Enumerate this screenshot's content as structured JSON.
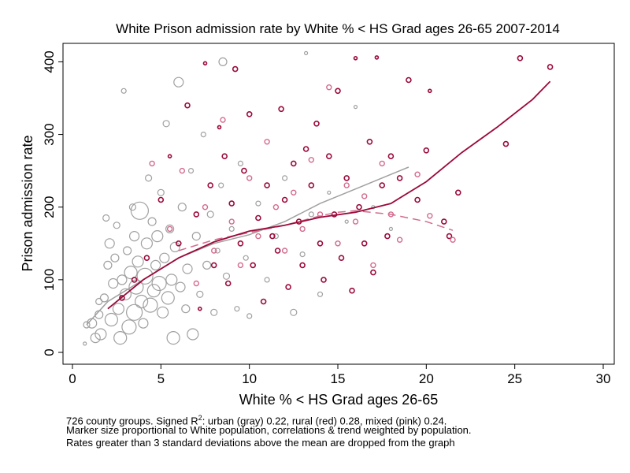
{
  "chart_data": {
    "type": "scatter",
    "title": "White Prison admission rate by White % < HS Grad ages 26-65 2007-2014",
    "xlabel": "White % < HS Grad ages 26-65",
    "ylabel": "Prison admission rate",
    "xlim": [
      0,
      30
    ],
    "ylim": [
      0,
      420
    ],
    "xticks": [
      "0",
      "5",
      "10",
      "15",
      "20",
      "25",
      "30"
    ],
    "yticks": [
      "0",
      "100",
      "200",
      "300",
      "400"
    ],
    "grid": false,
    "legend": "none",
    "colors": {
      "urban": "#a0a0a0",
      "rural": "#9b0a3a",
      "mixed": "#d46b8c"
    },
    "trend_urban": [
      [
        0.8,
        38
      ],
      [
        2,
        70
      ],
      [
        4,
        100
      ],
      [
        6,
        130
      ],
      [
        8,
        150
      ],
      [
        10,
        162
      ],
      [
        12,
        180
      ],
      [
        14,
        205
      ],
      [
        16,
        225
      ],
      [
        18,
        245
      ],
      [
        19,
        255
      ]
    ],
    "trend_rural": [
      [
        2,
        60
      ],
      [
        4,
        100
      ],
      [
        6,
        130
      ],
      [
        8,
        152
      ],
      [
        10,
        167
      ],
      [
        12,
        175
      ],
      [
        14,
        186
      ],
      [
        16,
        193
      ],
      [
        18,
        205
      ],
      [
        20,
        235
      ],
      [
        22,
        275
      ],
      [
        24,
        310
      ],
      [
        26,
        348
      ],
      [
        27,
        373
      ]
    ],
    "trend_mixed": [
      [
        6,
        140
      ],
      [
        8,
        155
      ],
      [
        10,
        165
      ],
      [
        12,
        175
      ],
      [
        14,
        188
      ],
      [
        15,
        193
      ],
      [
        16,
        195
      ],
      [
        18,
        190
      ],
      [
        20,
        180
      ],
      [
        21.5,
        168
      ]
    ],
    "points_urban": [
      [
        0.7,
        12,
        2
      ],
      [
        0.8,
        38,
        4
      ],
      [
        1.1,
        40,
        6
      ],
      [
        1.3,
        20,
        6
      ],
      [
        1.5,
        70,
        4
      ],
      [
        1.5,
        52,
        5
      ],
      [
        1.6,
        25,
        7
      ],
      [
        1.8,
        75,
        5
      ],
      [
        1.9,
        185,
        4
      ],
      [
        2.0,
        120,
        5
      ],
      [
        2.1,
        150,
        6
      ],
      [
        2.2,
        45,
        8
      ],
      [
        2.3,
        95,
        6
      ],
      [
        2.4,
        130,
        5
      ],
      [
        2.5,
        175,
        4
      ],
      [
        2.6,
        60,
        7
      ],
      [
        2.7,
        20,
        8
      ],
      [
        2.8,
        100,
        6
      ],
      [
        2.9,
        360,
        3
      ],
      [
        3.0,
        80,
        7
      ],
      [
        3.1,
        140,
        5
      ],
      [
        3.2,
        35,
        9
      ],
      [
        3.3,
        110,
        8
      ],
      [
        3.4,
        200,
        4
      ],
      [
        3.5,
        55,
        10
      ],
      [
        3.5,
        160,
        6
      ],
      [
        3.6,
        90,
        9
      ],
      [
        3.7,
        125,
        7
      ],
      [
        3.8,
        195,
        11
      ],
      [
        3.9,
        70,
        8
      ],
      [
        4.0,
        40,
        6
      ],
      [
        4.1,
        105,
        10
      ],
      [
        4.2,
        150,
        7
      ],
      [
        4.3,
        240,
        4
      ],
      [
        4.4,
        65,
        9
      ],
      [
        4.5,
        180,
        5
      ],
      [
        4.6,
        85,
        8
      ],
      [
        4.7,
        120,
        6
      ],
      [
        4.8,
        160,
        7
      ],
      [
        4.9,
        95,
        9
      ],
      [
        5.0,
        220,
        4
      ],
      [
        5.1,
        55,
        7
      ],
      [
        5.2,
        130,
        6
      ],
      [
        5.3,
        315,
        4
      ],
      [
        5.4,
        75,
        8
      ],
      [
        5.5,
        170,
        5
      ],
      [
        5.6,
        100,
        7
      ],
      [
        5.7,
        20,
        8
      ],
      [
        5.8,
        145,
        6
      ],
      [
        6.0,
        372,
        6
      ],
      [
        6.1,
        90,
        6
      ],
      [
        6.2,
        200,
        5
      ],
      [
        6.4,
        60,
        5
      ],
      [
        6.5,
        115,
        6
      ],
      [
        6.7,
        250,
        3
      ],
      [
        6.8,
        25,
        7
      ],
      [
        7.0,
        160,
        5
      ],
      [
        7.2,
        80,
        4
      ],
      [
        7.4,
        300,
        3
      ],
      [
        7.6,
        120,
        5
      ],
      [
        7.8,
        190,
        4
      ],
      [
        8.0,
        55,
        4
      ],
      [
        8.2,
        140,
        3
      ],
      [
        8.4,
        230,
        3
      ],
      [
        8.5,
        400,
        5
      ],
      [
        8.7,
        105,
        4
      ],
      [
        9.0,
        170,
        3
      ],
      [
        9.3,
        60,
        3
      ],
      [
        9.5,
        260,
        3
      ],
      [
        9.8,
        130,
        3
      ],
      [
        10.0,
        50,
        3
      ],
      [
        10.5,
        205,
        3
      ],
      [
        11.0,
        100,
        3
      ],
      [
        11.5,
        160,
        3
      ],
      [
        12.0,
        240,
        3
      ],
      [
        12.5,
        55,
        4
      ],
      [
        13.0,
        135,
        3
      ],
      [
        13.2,
        412,
        2
      ],
      [
        13.5,
        190,
        3
      ],
      [
        14.0,
        80,
        3
      ],
      [
        14.5,
        220,
        2
      ],
      [
        15.0,
        150,
        3
      ],
      [
        15.5,
        180,
        2
      ],
      [
        16.0,
        338,
        2
      ],
      [
        17.0,
        200,
        2
      ],
      [
        18.0,
        170,
        2
      ]
    ],
    "points_rural": [
      [
        2.8,
        75,
        3
      ],
      [
        3.5,
        100,
        3
      ],
      [
        4.2,
        130,
        3
      ],
      [
        5.0,
        210,
        3
      ],
      [
        5.5,
        270,
        2
      ],
      [
        6.0,
        150,
        3
      ],
      [
        6.5,
        340,
        3
      ],
      [
        7.0,
        190,
        3
      ],
      [
        7.2,
        60,
        2
      ],
      [
        7.5,
        398,
        2
      ],
      [
        7.8,
        230,
        3
      ],
      [
        8.0,
        120,
        3
      ],
      [
        8.3,
        310,
        2
      ],
      [
        8.6,
        270,
        3
      ],
      [
        8.8,
        95,
        3
      ],
      [
        9.0,
        205,
        3
      ],
      [
        9.2,
        390,
        3
      ],
      [
        9.5,
        150,
        3
      ],
      [
        9.7,
        250,
        3
      ],
      [
        10.0,
        328,
        3
      ],
      [
        10.2,
        120,
        3
      ],
      [
        10.5,
        185,
        3
      ],
      [
        10.8,
        70,
        3
      ],
      [
        11.0,
        230,
        3
      ],
      [
        11.3,
        160,
        3
      ],
      [
        11.6,
        140,
        3
      ],
      [
        11.8,
        335,
        3
      ],
      [
        12.0,
        210,
        3
      ],
      [
        12.2,
        90,
        3
      ],
      [
        12.5,
        260,
        3
      ],
      [
        12.8,
        180,
        3
      ],
      [
        13.0,
        120,
        3
      ],
      [
        13.2,
        280,
        3
      ],
      [
        13.5,
        230,
        3
      ],
      [
        13.8,
        315,
        3
      ],
      [
        14.0,
        150,
        3
      ],
      [
        14.2,
        100,
        3
      ],
      [
        14.5,
        270,
        3
      ],
      [
        14.8,
        190,
        3
      ],
      [
        15.0,
        360,
        3
      ],
      [
        15.2,
        130,
        3
      ],
      [
        15.5,
        240,
        3
      ],
      [
        15.8,
        85,
        3
      ],
      [
        16.0,
        405,
        2
      ],
      [
        16.2,
        200,
        3
      ],
      [
        16.5,
        150,
        3
      ],
      [
        16.8,
        290,
        3
      ],
      [
        17.0,
        110,
        3
      ],
      [
        17.2,
        406,
        2
      ],
      [
        17.5,
        230,
        3
      ],
      [
        17.8,
        160,
        3
      ],
      [
        18.0,
        270,
        3
      ],
      [
        18.5,
        240,
        3
      ],
      [
        19.0,
        375,
        3
      ],
      [
        19.5,
        210,
        3
      ],
      [
        20.0,
        278,
        3
      ],
      [
        20.2,
        360,
        2
      ],
      [
        21.0,
        180,
        3
      ],
      [
        21.3,
        160,
        3
      ],
      [
        21.8,
        220,
        3
      ],
      [
        24.5,
        287,
        3
      ],
      [
        25.3,
        405,
        3
      ],
      [
        27.0,
        393,
        3
      ]
    ],
    "points_mixed": [
      [
        4.5,
        260,
        3
      ],
      [
        5.5,
        170,
        3
      ],
      [
        6.2,
        250,
        3
      ],
      [
        7.0,
        95,
        3
      ],
      [
        7.5,
        200,
        3
      ],
      [
        8.0,
        140,
        3
      ],
      [
        8.5,
        320,
        3
      ],
      [
        9.0,
        180,
        3
      ],
      [
        9.5,
        120,
        3
      ],
      [
        10.0,
        240,
        3
      ],
      [
        10.5,
        160,
        3
      ],
      [
        11.0,
        290,
        3
      ],
      [
        11.5,
        200,
        3
      ],
      [
        12.0,
        140,
        3
      ],
      [
        12.5,
        220,
        3
      ],
      [
        13.0,
        170,
        3
      ],
      [
        13.5,
        265,
        3
      ],
      [
        14.0,
        190,
        3
      ],
      [
        14.5,
        365,
        3
      ],
      [
        15.0,
        150,
        3
      ],
      [
        15.5,
        230,
        3
      ],
      [
        16.0,
        180,
        3
      ],
      [
        16.5,
        215,
        3
      ],
      [
        17.0,
        120,
        3
      ],
      [
        17.5,
        260,
        3
      ],
      [
        18.0,
        190,
        3
      ],
      [
        18.5,
        155,
        3
      ],
      [
        19.5,
        245,
        3
      ],
      [
        20.2,
        188,
        3
      ],
      [
        21.5,
        155,
        3
      ]
    ]
  },
  "notes": {
    "line1_prefix": "726 county groups. Signed R",
    "line1_sup": "2",
    "line1_suffix": ": urban (gray) 0.22, rural (red) 0.28, mixed (pink) 0.24.",
    "line2": "Marker size proportional to White population, correlations & trend weighted by population.",
    "line3": "Rates greater than 3 standard deviations above the mean are dropped from the graph"
  }
}
